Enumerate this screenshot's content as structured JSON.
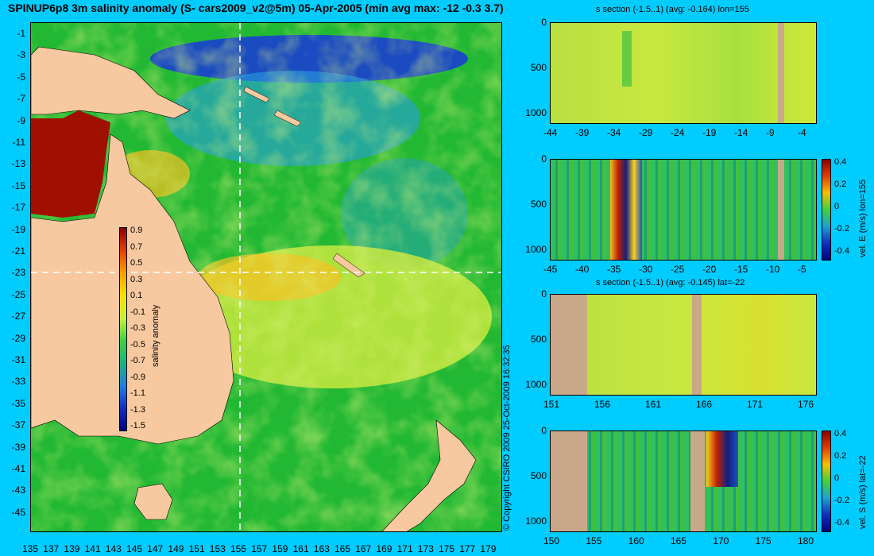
{
  "main_title": "SPINUP6p8 3m salinity anomaly (S- cars2009_v2@5m) 05-Apr-2005 (min avg max: -12 -0.3 3.7)",
  "map": {
    "lat_ticks": [
      "-1",
      "-3",
      "-5",
      "-7",
      "-9",
      "-11",
      "-13",
      "-15",
      "-17",
      "-19",
      "-21",
      "-23",
      "-25",
      "-27",
      "-29",
      "-31",
      "-33",
      "-35",
      "-37",
      "-39",
      "-41",
      "-43",
      "-45"
    ],
    "lon_ticks": [
      "135",
      "137",
      "139",
      "141",
      "143",
      "145",
      "147",
      "149",
      "151",
      "153",
      "155",
      "157",
      "159",
      "161",
      "163",
      "165",
      "167",
      "169",
      "171",
      "173",
      "175",
      "177",
      "179"
    ],
    "section_lon": 155,
    "section_lat": -22,
    "colors": {
      "land": "#f8c9a0",
      "ocean": "#22b833",
      "fresh": "#1a3fd0",
      "salty": "#a01000",
      "mid": "#c8e840",
      "warm": "#f8c020"
    },
    "colorbar": {
      "label": "salinity anomaly",
      "ticks": [
        "0.9",
        "0.7",
        "0.5",
        "0.3",
        "0.1",
        "-0.1",
        "-0.3",
        "-0.5",
        "-0.7",
        "-0.9",
        "-1.1",
        "-1.3",
        "-1.5"
      ]
    }
  },
  "copyright": "© Copyright CSIRO 2009   25-Oct-2009 16:32:35",
  "panels": [
    {
      "title": "s section (-1.5..1) (avg: -0.164) lon=155",
      "x_ticks": [
        "-44",
        "-39",
        "-34",
        "-29",
        "-24",
        "-19",
        "-14",
        "-9",
        "-4"
      ],
      "y_ticks": [
        "0",
        "500",
        "1000"
      ],
      "cbar_label": "",
      "cbar_ticks": []
    },
    {
      "title": "",
      "x_ticks": [
        "-45",
        "-40",
        "-35",
        "-30",
        "-25",
        "-20",
        "-15",
        "-10",
        "-5"
      ],
      "y_ticks": [
        "0",
        "500",
        "1000"
      ],
      "cbar_label": "vel. E (m/s) lon=155",
      "cbar_ticks": [
        "0.4",
        "0.2",
        "0",
        "-0.2",
        "-0.4"
      ]
    },
    {
      "title": "s section (-1.5..1) (avg: -0.145) lat=-22",
      "x_ticks": [
        "151",
        "156",
        "161",
        "166",
        "171",
        "176"
      ],
      "y_ticks": [
        "0",
        "500",
        "1000"
      ],
      "cbar_label": "",
      "cbar_ticks": []
    },
    {
      "title": "",
      "x_ticks": [
        "150",
        "155",
        "160",
        "165",
        "170",
        "175",
        "180"
      ],
      "y_ticks": [
        "0",
        "500",
        "1000"
      ],
      "cbar_label": "vel. S (m/s) lat=-22",
      "cbar_ticks": [
        "0.4",
        "0.2",
        "0",
        "-0.2",
        "-0.4"
      ]
    }
  ]
}
